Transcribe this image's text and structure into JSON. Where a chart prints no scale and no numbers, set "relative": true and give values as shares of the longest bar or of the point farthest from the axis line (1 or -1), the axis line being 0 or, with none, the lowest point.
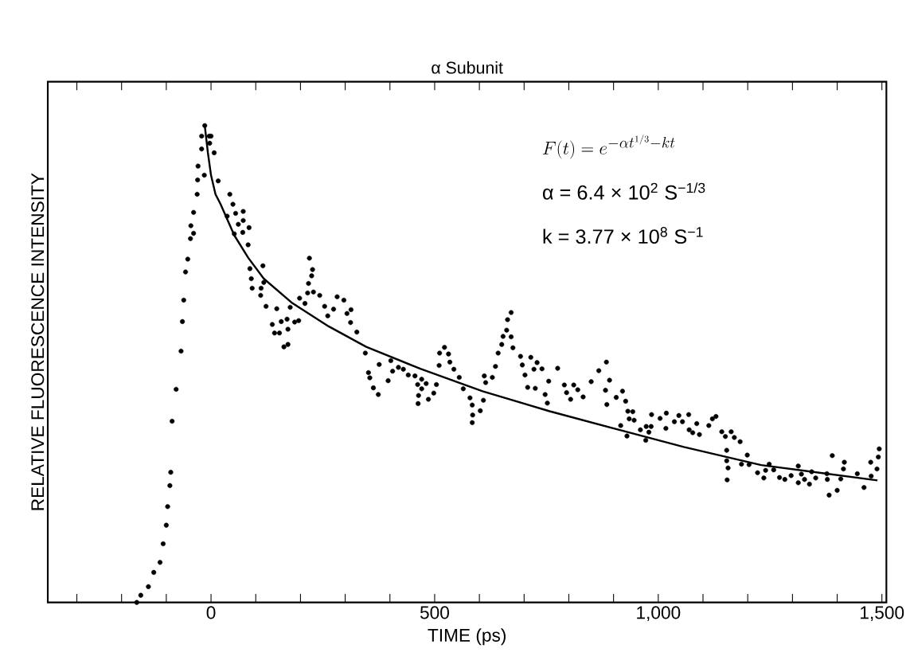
{
  "chart_data": {
    "type": "scatter",
    "title": "α Subunit",
    "xlabel": "TIME (ps)",
    "ylabel": "RELATIVE FLUORESCENCE INTENSITY",
    "relative": true,
    "xlim": [
      -365,
      1510
    ],
    "xticks": [
      {
        "value": -300,
        "label": null
      },
      {
        "value": -200,
        "label": null
      },
      {
        "value": -100,
        "label": null
      },
      0,
      {
        "value": 100,
        "label": null
      },
      {
        "value": 200,
        "label": null
      },
      {
        "value": 300,
        "label": null
      },
      {
        "value": 400,
        "label": null
      },
      500,
      {
        "value": 600,
        "label": null
      },
      {
        "value": 700,
        "label": null
      },
      {
        "value": 800,
        "label": null
      },
      {
        "value": 900,
        "label": null
      },
      {
        "value": 1000,
        "label": "1,000"
      },
      {
        "value": 1100,
        "label": null
      },
      {
        "value": 1200,
        "label": null
      },
      {
        "value": 1300,
        "label": null
      },
      {
        "value": 1400,
        "label": null
      },
      {
        "value": 1500,
        "label": "1,500"
      }
    ],
    "annotations": [
      "F(t)=e^{-\\alpha t^{1/3}-kt}",
      "α = 6.4 × 10$^{2}$ S$^{−1/3}$",
      "k = 3.77 × 10$^{8}$ S$^{−1}$"
    ],
    "series": [
      {
        "color": "#000000",
        "marker": "circle",
        "x": [
          -166,
          -157,
          -140,
          -128,
          -114,
          -107,
          -100,
          -97,
          -92,
          -90,
          -87,
          -78,
          -67,
          -64,
          -61,
          -57,
          -52,
          -46,
          -39,
          -45,
          -39,
          -31,
          -30,
          -29,
          -15,
          -21,
          -21,
          -14,
          -4,
          0,
          -3,
          7,
          16,
          42,
          49,
          55,
          72,
          61,
          72,
          36,
          52,
          85,
          71,
          83,
          87,
          90,
          92,
          116,
          118,
          112,
          111,
          123,
          147,
          137,
          142,
          153,
          157,
          170,
          172,
          163,
          172,
          177,
          187,
          196,
          198,
          210,
          216,
          229,
          218,
          225,
          227,
          220,
          243,
          254,
          261,
          274,
          282,
          297,
          304,
          313,
          312,
          326,
          345,
          352,
          355,
          363,
          374,
          376,
          396,
          402,
          406,
          419,
          430,
          441,
          456,
          462,
          464,
          463,
          471,
          471,
          481,
          486,
          498,
          504,
          510,
          511,
          522,
          531,
          534,
          543,
          555,
          564,
          579,
          584,
          585,
          584,
          602,
          609,
          611,
          614,
          629,
          636,
          642,
          650,
          653,
          661,
          663,
          671,
          671,
          675,
          692,
          696,
          702,
          708,
          715,
          722,
          725,
          729,
          740,
          747,
          752,
          755,
          775,
          790,
          795,
          804,
          811,
          820,
          832,
          850,
          867,
          884,
          882,
          891,
          885,
          906,
          916,
          920,
          927,
          932,
          943,
          935,
          946,
          930,
          960,
          973,
          984,
          979,
          972,
          985,
          1004,
          1018,
          1017,
          1036,
          1046,
          1054,
          1068,
          1069,
          1077,
          1086,
          1092,
          1113,
          1121,
          1129,
          1142,
          1150,
          1163,
          1170,
          1183,
          1153,
          1153,
          1156,
          1154,
          1186,
          1199,
          1203,
          1222,
          1236,
          1240,
          1248,
          1258,
          1271,
          1283,
          1297,
          1313,
          1313,
          1320,
          1327,
          1338,
          1343,
          1352,
          1377,
          1378,
          1382,
          1389,
          1400,
          1408,
          1414,
          1416,
          1445,
          1460,
          1476,
          1475,
          1489,
          1492,
          1494
        ],
        "values": [
          0.0,
          0.015,
          0.033,
          0.063,
          0.084,
          0.123,
          0.162,
          0.201,
          0.245,
          0.273,
          0.38,
          0.447,
          0.527,
          0.589,
          0.634,
          0.693,
          0.72,
          0.763,
          0.774,
          0.79,
          0.818,
          0.856,
          0.886,
          0.915,
          0.896,
          0.951,
          0.978,
          1.0,
          0.978,
          0.978,
          0.963,
          0.943,
          0.884,
          0.856,
          0.835,
          0.816,
          0.82,
          0.793,
          0.801,
          0.81,
          0.773,
          0.786,
          0.776,
          0.75,
          0.7,
          0.679,
          0.659,
          0.706,
          0.671,
          0.659,
          0.644,
          0.621,
          0.616,
          0.583,
          0.565,
          0.565,
          0.589,
          0.594,
          0.573,
          0.536,
          0.541,
          0.619,
          0.588,
          0.591,
          0.638,
          0.627,
          0.649,
          0.651,
          0.669,
          0.685,
          0.698,
          0.722,
          0.644,
          0.621,
          0.601,
          0.615,
          0.641,
          0.634,
          0.606,
          0.614,
          0.587,
          0.567,
          0.523,
          0.482,
          0.471,
          0.45,
          0.436,
          0.499,
          0.465,
          0.507,
          0.485,
          0.493,
          0.489,
          0.477,
          0.475,
          0.457,
          0.434,
          0.417,
          0.468,
          0.448,
          0.459,
          0.426,
          0.439,
          0.457,
          0.497,
          0.523,
          0.535,
          0.521,
          0.504,
          0.489,
          0.472,
          0.448,
          0.429,
          0.414,
          0.393,
          0.377,
          0.402,
          0.424,
          0.475,
          0.461,
          0.472,
          0.495,
          0.523,
          0.541,
          0.558,
          0.571,
          0.593,
          0.608,
          0.557,
          0.534,
          0.516,
          0.498,
          0.477,
          0.451,
          0.514,
          0.489,
          0.449,
          0.503,
          0.49,
          0.436,
          0.418,
          0.464,
          0.491,
          0.456,
          0.44,
          0.426,
          0.456,
          0.446,
          0.431,
          0.463,
          0.486,
          0.504,
          0.445,
          0.466,
          0.415,
          0.43,
          0.371,
          0.443,
          0.422,
          0.401,
          0.4,
          0.385,
          0.382,
          0.349,
          0.362,
          0.369,
          0.369,
          0.357,
          0.34,
          0.394,
          0.386,
          0.397,
          0.365,
          0.379,
          0.392,
          0.379,
          0.394,
          0.362,
          0.356,
          0.375,
          0.352,
          0.371,
          0.385,
          0.39,
          0.358,
          0.348,
          0.358,
          0.346,
          0.337,
          0.319,
          0.297,
          0.282,
          0.257,
          0.29,
          0.309,
          0.289,
          0.272,
          0.261,
          0.277,
          0.29,
          0.278,
          0.262,
          0.258,
          0.266,
          0.286,
          0.251,
          0.269,
          0.258,
          0.248,
          0.274,
          0.261,
          0.27,
          0.258,
          0.225,
          0.308,
          0.235,
          0.259,
          0.28,
          0.294,
          0.27,
          0.241,
          0.265,
          0.294,
          0.28,
          0.305,
          0.322
        ]
      },
      {
        "type": "line",
        "color": "#000000",
        "line_style": "solid",
        "x": [
          -14,
          -7,
          0,
          10,
          21,
          52,
          83,
          118,
          180,
          263,
          347,
          468,
          607,
          757,
          916,
          1057,
          1230,
          1490
        ],
        "values": [
          1.0,
          0.943,
          0.896,
          0.856,
          0.836,
          0.77,
          0.723,
          0.679,
          0.629,
          0.579,
          0.536,
          0.49,
          0.443,
          0.401,
          0.361,
          0.326,
          0.288,
          0.256
        ]
      }
    ]
  }
}
